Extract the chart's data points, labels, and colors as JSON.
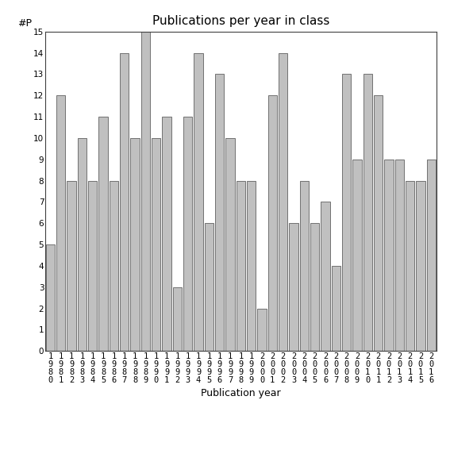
{
  "years": [
    "1980",
    "1981",
    "1982",
    "1983",
    "1984",
    "1985",
    "1986",
    "1987",
    "1988",
    "1989",
    "1990",
    "1991",
    "1992",
    "1993",
    "1994",
    "1995",
    "1996",
    "1997",
    "1998",
    "1999",
    "2000",
    "2001",
    "2002",
    "2003",
    "2004",
    "2005",
    "2006",
    "2007",
    "2008",
    "2009",
    "2010",
    "2011",
    "2012",
    "2013",
    "2014",
    "2015",
    "2016"
  ],
  "values": [
    5,
    12,
    8,
    10,
    8,
    11,
    8,
    14,
    10,
    15,
    10,
    11,
    3,
    11,
    14,
    6,
    13,
    10,
    8,
    8,
    2,
    12,
    14,
    6,
    8,
    6,
    7,
    4,
    13,
    9,
    13,
    12,
    9,
    9,
    8,
    8,
    9
  ],
  "bar_color": "#c0c0c0",
  "bar_edgecolor": "#606060",
  "title": "Publications per year in class",
  "xlabel": "Publication year",
  "ylabel": "#P",
  "ylim": [
    0,
    15
  ],
  "yticks": [
    0,
    1,
    2,
    3,
    4,
    5,
    6,
    7,
    8,
    9,
    10,
    11,
    12,
    13,
    14,
    15
  ],
  "background_color": "#ffffff",
  "title_fontsize": 11,
  "axis_fontsize": 9,
  "tick_fontsize": 7.5
}
